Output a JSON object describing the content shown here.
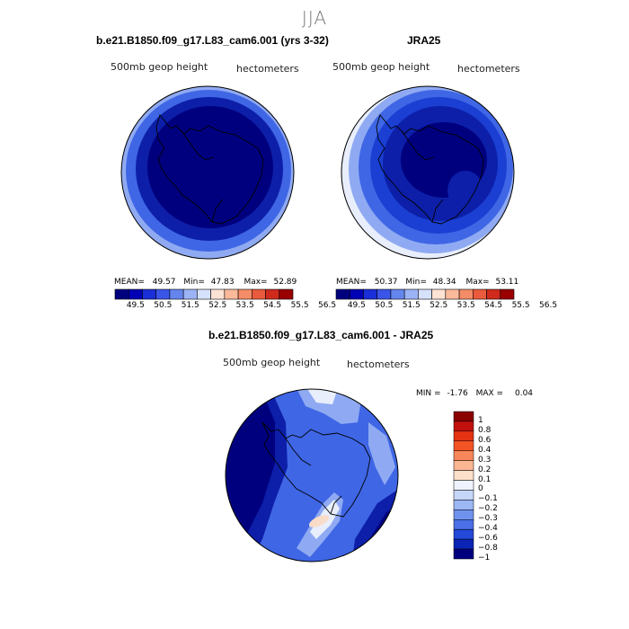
{
  "figure": {
    "season_title": "JJA"
  },
  "panels": [
    {
      "title": "b.e21.B1850.f09_g17.L83_cam6.001 (yrs 3-32)",
      "variable_label": "500mb geop height",
      "units_label": "hectometers",
      "stats": {
        "mean_label": "MEAN=",
        "mean": "49.57",
        "min_label": "Min=",
        "min": "47.83",
        "max_label": "Max=",
        "max": "52.89"
      },
      "colorbar_ticks": [
        "49.5",
        "50.5",
        "51.5",
        "52.5",
        "53.5",
        "54.5",
        "55.5",
        "56.5"
      ]
    },
    {
      "title": "JRA25",
      "variable_label": "500mb geop height",
      "units_label": "hectometers",
      "stats": {
        "mean_label": "MEAN=",
        "mean": "50.37",
        "min_label": "Min=",
        "min": "48.34",
        "max_label": "Max=",
        "max": "53.11"
      },
      "colorbar_ticks": [
        "49.5",
        "50.5",
        "51.5",
        "52.5",
        "53.5",
        "54.5",
        "55.5",
        "56.5"
      ]
    },
    {
      "title": "b.e21.B1850.f09_g17.L83_cam6.001 - JRA25",
      "variable_label": "500mb geop height",
      "units_label": "hectometers",
      "stats": {
        "min_label": "MIN =",
        "min": "-1.76",
        "max_label": "MAX =",
        "max": "0.04"
      },
      "colorbar_ticks": [
        "1",
        "0.8",
        "0.6",
        "0.4",
        "0.3",
        "0.2",
        "0.1",
        "0",
        "−0.1",
        "−0.2",
        "−0.3",
        "−0.4",
        "−0.6",
        "−0.8",
        "−1"
      ]
    }
  ],
  "colors": {
    "abs_scale": [
      "#00007f",
      "#0000b4",
      "#1a2fd8",
      "#3a55e8",
      "#6585ee",
      "#9cb4f5",
      "#d6e2fb",
      "#fde3d4",
      "#f9b99a",
      "#f48c67",
      "#ea5a3d",
      "#cf2a1c",
      "#9a0000"
    ],
    "diff_scale": [
      "#8b0000",
      "#c2110c",
      "#e43313",
      "#f35425",
      "#f7875b",
      "#fab592",
      "#fde0ca",
      "#eef3fd",
      "#c5d6f9",
      "#9bb7f4",
      "#6f92ee",
      "#4a6fe6",
      "#2448d8",
      "#0b24b6",
      "#00007f"
    ],
    "map_deep": "#00007f",
    "map_dark": "#0d1fa8",
    "map_mid": "#1a3fd2",
    "map_light": "#3f66e5",
    "map_pale": "#8faaf2",
    "map_lightest": "#e8eefc",
    "anomaly_positive": "#f9dcc8"
  }
}
